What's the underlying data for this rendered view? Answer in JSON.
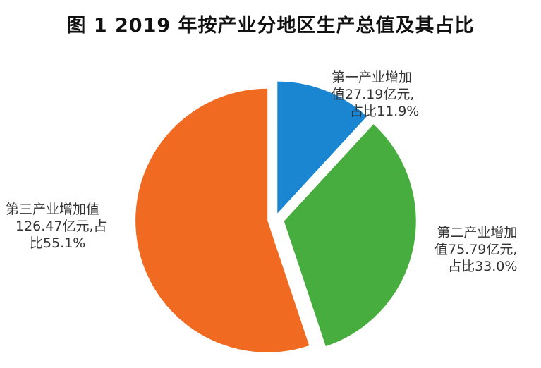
{
  "chart_data": {
    "type": "pie",
    "title": "图 1   2019 年按产业分地区生产总值及其占比",
    "slices": [
      {
        "name": "第一产业增加值",
        "value": 27.19,
        "percent": 11.9,
        "color": "#1a86d2",
        "label_lines": [
          "第一产业增加",
          "值27.19亿元,",
          "占比11.9%"
        ]
      },
      {
        "name": "第二产业增加值",
        "value": 75.79,
        "percent": 33.0,
        "color": "#47ad3e",
        "label_lines": [
          "第二产业增加",
          "值75.79亿元,",
          "占比33.0%"
        ]
      },
      {
        "name": "第三产业增加值",
        "value": 126.47,
        "percent": 55.1,
        "color": "#f06a21",
        "label_lines": [
          "第三产业增加值",
          "126.47亿元,占",
          "比55.1%"
        ]
      }
    ]
  }
}
